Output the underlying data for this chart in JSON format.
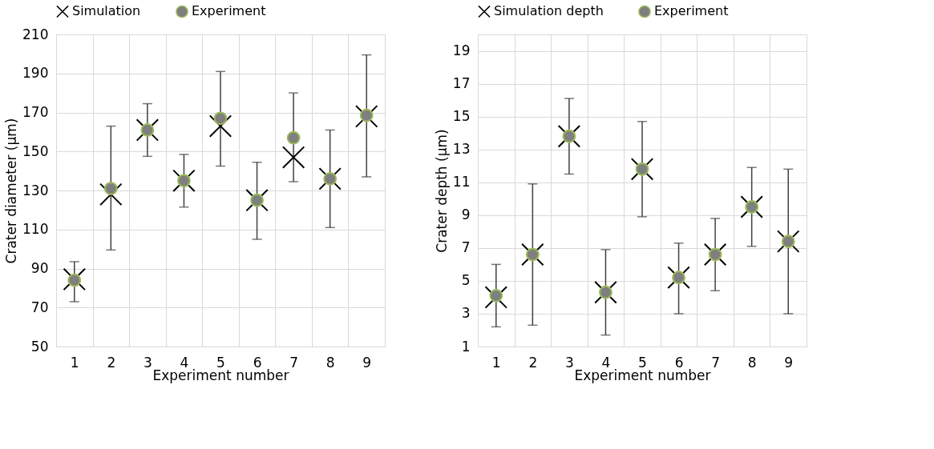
{
  "chart_data": [
    {
      "type": "scatter",
      "xlabel": "Experiment number",
      "ylabel": "Crater diameter (µm)",
      "categories": [
        "1",
        "2",
        "3",
        "4",
        "5",
        "6",
        "7",
        "8",
        "9"
      ],
      "ylim": [
        50,
        210
      ],
      "yticks": [
        50,
        70,
        90,
        110,
        130,
        150,
        170,
        190,
        210
      ],
      "grid": true,
      "legend": "top",
      "series": [
        {
          "name": "Simulation",
          "color": "#000000",
          "marker": "cross",
          "values": [
            84.5,
            128,
            161,
            135,
            163,
            125,
            147,
            136,
            168
          ]
        },
        {
          "name": "Experiment",
          "color": "#7f7f7f",
          "marker": "circle",
          "values": [
            84,
            131,
            161,
            135,
            167,
            125,
            157,
            136,
            168.5
          ],
          "errors": [
            [
              73,
              93.5
            ],
            [
              99.5,
              163
            ],
            [
              147.5,
              174.5
            ],
            [
              121.5,
              148.5
            ],
            [
              142.5,
              191
            ],
            [
              105,
              144.5
            ],
            [
              134.5,
              180
            ],
            [
              111,
              161
            ],
            [
              137,
              199.5
            ]
          ]
        }
      ]
    },
    {
      "type": "scatter",
      "xlabel": "Experiment number",
      "ylabel": "Crater depth (µm)",
      "categories": [
        "1",
        "2",
        "3",
        "4",
        "5",
        "6",
        "7",
        "8",
        "9"
      ],
      "ylim": [
        1,
        20
      ],
      "yticks": [
        1,
        3,
        5,
        7,
        9,
        11,
        13,
        15,
        17,
        19
      ],
      "grid": true,
      "legend": "top",
      "series": [
        {
          "name": "Simulation depth",
          "color": "#000000",
          "marker": "cross",
          "values": [
            4.0,
            6.6,
            13.8,
            4.3,
            11.8,
            5.2,
            6.6,
            9.5,
            7.4
          ]
        },
        {
          "name": "Experiment",
          "color": "#7f7f7f",
          "marker": "circle",
          "values": [
            4.1,
            6.6,
            13.8,
            4.3,
            11.8,
            5.2,
            6.6,
            9.5,
            7.4
          ],
          "errors": [
            [
              2.2,
              6.0
            ],
            [
              2.3,
              10.9
            ],
            [
              11.5,
              16.1
            ],
            [
              1.7,
              6.9
            ],
            [
              8.9,
              14.7
            ],
            [
              3.0,
              7.3
            ],
            [
              4.4,
              8.8
            ],
            [
              7.1,
              11.9
            ],
            [
              3.0,
              11.8
            ]
          ]
        }
      ]
    }
  ]
}
